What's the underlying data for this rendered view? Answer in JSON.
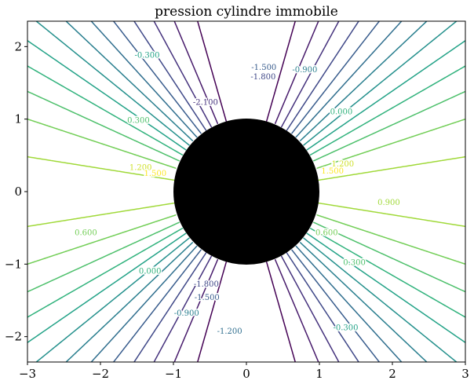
{
  "chart_data": {
    "type": "contour",
    "title": "pression cylindre immobile",
    "xlabel": "",
    "ylabel": "",
    "xlim": [
      -3,
      3
    ],
    "ylim": [
      -2.35,
      2.35
    ],
    "x_ticks": [
      -3,
      -2,
      -1,
      0,
      1,
      2,
      3
    ],
    "y_ticks": [
      -2,
      -1,
      0,
      1,
      2
    ],
    "x_tick_labels": [
      "−3",
      "−2",
      "−1",
      "0",
      "1",
      "2",
      "3"
    ],
    "y_tick_labels": [
      "−2",
      "−1",
      "0",
      "1",
      "2"
    ],
    "field": "1 - 4*(y/r)^2 for r >= 1 (pressure coefficient around a cylinder of radius 1)",
    "levels": [
      -2.7,
      -2.4,
      -2.1,
      -1.8,
      -1.5,
      -1.2,
      -0.9,
      -0.6,
      -0.3,
      0.0,
      0.3,
      0.6,
      0.9,
      1.2,
      1.5
    ],
    "colormap": "viridis",
    "cylinder": {
      "center": [
        0,
        0
      ],
      "radius": 1,
      "fill": "#000000"
    },
    "contour_labels": [
      {
        "text": "-0.300",
        "x": -1.36,
        "y": 1.88
      },
      {
        "text": "-0.300",
        "x": 1.36,
        "y": -1.88
      },
      {
        "text": "0.300",
        "x": -1.48,
        "y": 0.98
      },
      {
        "text": "0.300",
        "x": 1.48,
        "y": -0.98
      },
      {
        "text": "0.600",
        "x": -2.2,
        "y": -0.57
      },
      {
        "text": "0.600",
        "x": 1.1,
        "y": -0.57
      },
      {
        "text": "0.900",
        "x": 1.95,
        "y": -0.15
      },
      {
        "text": "0.000",
        "x": -1.32,
        "y": -1.1
      },
      {
        "text": "0.000",
        "x": 1.3,
        "y": 1.1
      },
      {
        "text": "1.200",
        "x": -1.45,
        "y": 0.33
      },
      {
        "text": "1.200",
        "x": 1.32,
        "y": 0.38
      },
      {
        "text": "1.500",
        "x": -1.25,
        "y": 0.25
      },
      {
        "text": "1.500",
        "x": 1.18,
        "y": 0.28
      },
      {
        "text": "-0.900",
        "x": 0.8,
        "y": 1.68
      },
      {
        "text": "-0.900",
        "x": -0.82,
        "y": -1.68
      },
      {
        "text": "-1.500",
        "x": 0.24,
        "y": 1.71
      },
      {
        "text": "-1.500",
        "x": -0.54,
        "y": -1.46
      },
      {
        "text": "-1.800",
        "x": 0.23,
        "y": 1.58
      },
      {
        "text": "-1.800",
        "x": -0.55,
        "y": -1.28
      },
      {
        "text": "-2.100",
        "x": -0.56,
        "y": 1.23
      },
      {
        "text": "-1.200",
        "x": -0.23,
        "y": -1.93
      }
    ]
  }
}
